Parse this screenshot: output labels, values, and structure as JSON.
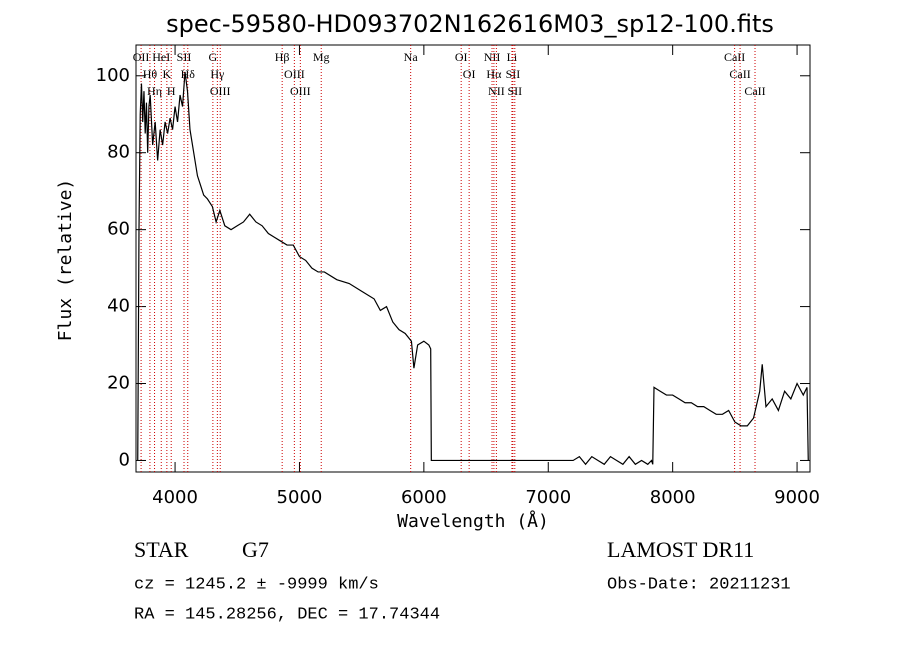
{
  "chart_data": {
    "type": "line",
    "title": "spec-59580-HD093702N162616M03_sp12-100.fits",
    "xlabel": "Wavelength (Å)",
    "ylabel": "Flux (relative)",
    "xlim": [
      3686,
      9104
    ],
    "ylim": [
      -3,
      108
    ],
    "xticks": [
      4000,
      5000,
      6000,
      7000,
      8000,
      9000
    ],
    "yticks": [
      0,
      20,
      40,
      60,
      80,
      100
    ],
    "line_color": "#000000",
    "marker_color": "#cc0000",
    "x": [
      3700,
      3710,
      3720,
      3730,
      3740,
      3750,
      3760,
      3770,
      3780,
      3790,
      3800,
      3820,
      3840,
      3860,
      3880,
      3900,
      3920,
      3940,
      3960,
      3980,
      4000,
      4020,
      4040,
      4060,
      4080,
      4100,
      4120,
      4150,
      4180,
      4200,
      4230,
      4260,
      4300,
      4330,
      4360,
      4400,
      4450,
      4500,
      4550,
      4600,
      4650,
      4700,
      4750,
      4800,
      4850,
      4900,
      4950,
      5000,
      5050,
      5100,
      5150,
      5200,
      5300,
      5400,
      5500,
      5600,
      5650,
      5700,
      5750,
      5800,
      5850,
      5900,
      5920,
      5950,
      6000,
      6040,
      6055,
      6060,
      6500,
      7000,
      7200,
      7250,
      7300,
      7350,
      7400,
      7450,
      7500,
      7550,
      7600,
      7650,
      7700,
      7750,
      7800,
      7830,
      7840,
      7850,
      7900,
      7950,
      8000,
      8050,
      8100,
      8150,
      8200,
      8250,
      8300,
      8350,
      8400,
      8450,
      8500,
      8550,
      8600,
      8650,
      8700,
      8720,
      8750,
      8800,
      8850,
      8900,
      8950,
      9000,
      9050,
      9080,
      9090
    ],
    "values": [
      0,
      60,
      90,
      98,
      88,
      96,
      85,
      93,
      80,
      92,
      95,
      82,
      88,
      78,
      86,
      82,
      88,
      85,
      89,
      86,
      92,
      88,
      95,
      92,
      101,
      96,
      86,
      80,
      74,
      72,
      69,
      68,
      66,
      62,
      65,
      61,
      60,
      61,
      62,
      64,
      62,
      61,
      59,
      58,
      57,
      56,
      56,
      53,
      52,
      50,
      49,
      49,
      47,
      46,
      44,
      42,
      39,
      40,
      36,
      34,
      33,
      31,
      24,
      30,
      31,
      30,
      29,
      0,
      0,
      0,
      0,
      1,
      -1,
      1,
      0,
      -1,
      1,
      0,
      -1,
      1,
      -1,
      0,
      -1,
      0,
      -1,
      19,
      18,
      17,
      17,
      16,
      15,
      15,
      14,
      14,
      13,
      12,
      12,
      13,
      10,
      9,
      9,
      11,
      18,
      25,
      14,
      16,
      13,
      18,
      16,
      20,
      17,
      19,
      0
    ],
    "lines": [
      {
        "label": "OII",
        "wavelength": 3727
      },
      {
        "label": "Hθ",
        "wavelength": 3798
      },
      {
        "label": "Hη",
        "wavelength": 3835
      },
      {
        "label": "HeI",
        "wavelength": 3889
      },
      {
        "label": "K",
        "wavelength": 3934
      },
      {
        "label": "H",
        "wavelength": 3969
      },
      {
        "label": "SII",
        "wavelength": 4072
      },
      {
        "label": "Hδ",
        "wavelength": 4102
      },
      {
        "label": "G",
        "wavelength": 4304
      },
      {
        "label": "Hγ",
        "wavelength": 4340
      },
      {
        "label": "OIII",
        "wavelength": 4363
      },
      {
        "label": "Hβ",
        "wavelength": 4861
      },
      {
        "label": "OIII",
        "wavelength": 4959
      },
      {
        "label": "OIII",
        "wavelength": 5007
      },
      {
        "label": "Mg",
        "wavelength": 5175
      },
      {
        "label": "Na",
        "wavelength": 5894
      },
      {
        "label": "OI",
        "wavelength": 6300
      },
      {
        "label": "OI",
        "wavelength": 6364
      },
      {
        "label": "NII",
        "wavelength": 6548
      },
      {
        "label": "Hα",
        "wavelength": 6563
      },
      {
        "label": "NII",
        "wavelength": 6583
      },
      {
        "label": "Li",
        "wavelength": 6708
      },
      {
        "label": "SII",
        "wavelength": 6716
      },
      {
        "label": "SII",
        "wavelength": 6731
      },
      {
        "label": "CaII",
        "wavelength": 8498
      },
      {
        "label": "CaII",
        "wavelength": 8542
      },
      {
        "label": "CaII",
        "wavelength": 8662
      }
    ],
    "info": {
      "class": "STAR",
      "subclass": "G7",
      "survey": "LAMOST DR11",
      "cz": "cz = 1245.2 ± -9999 km/s",
      "obs_date": "Obs-Date: 20211231",
      "coords": "RA = 145.28256, DEC =  17.74344"
    }
  }
}
